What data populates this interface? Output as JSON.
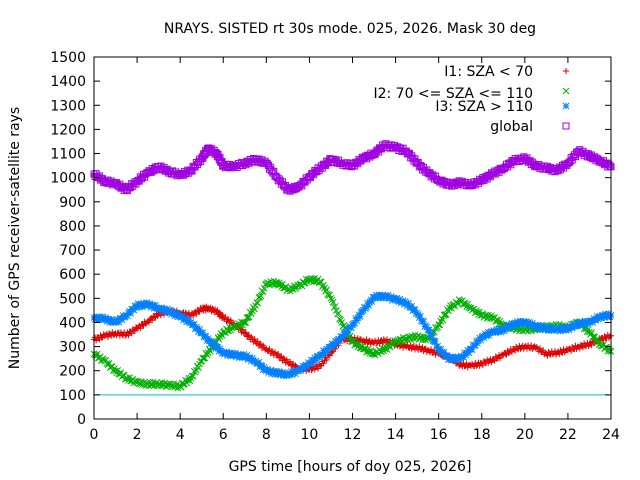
{
  "chart_data": {
    "type": "scatter",
    "title": "NRAYS. SISTED rt 30s mode. 025, 2026. Mask 30 deg",
    "xlabel": "GPS time [hours of doy 025, 2026]",
    "ylabel": "Number of GPS receiver-satellite rays",
    "xlim": [
      0,
      24
    ],
    "ylim": [
      0,
      1500
    ],
    "x_ticks": [
      "0",
      "2",
      "4",
      "6",
      "8",
      "10",
      "12",
      "14",
      "16",
      "18",
      "20",
      "22",
      "24"
    ],
    "y_ticks": [
      "0",
      "100",
      "200",
      "300",
      "400",
      "500",
      "600",
      "700",
      "800",
      "900",
      "1000",
      "1100",
      "1200",
      "1300",
      "1400",
      "1500"
    ],
    "reference_line": {
      "y": 100,
      "color": "#00c0c0"
    },
    "legend_position": "top-right",
    "series": [
      {
        "name": "I1: SZA < 70",
        "marker": "plus",
        "color": "#e00000",
        "points": [
          [
            0,
            330
          ],
          [
            0.5,
            345
          ],
          [
            1,
            355
          ],
          [
            1.5,
            350
          ],
          [
            2,
            375
          ],
          [
            2.5,
            405
          ],
          [
            3,
            435
          ],
          [
            3.5,
            445
          ],
          [
            4,
            440
          ],
          [
            4.5,
            430
          ],
          [
            5,
            455
          ],
          [
            5.3,
            460
          ],
          [
            5.7,
            445
          ],
          [
            6,
            420
          ],
          [
            6.5,
            395
          ],
          [
            7,
            355
          ],
          [
            7.5,
            320
          ],
          [
            8,
            290
          ],
          [
            8.5,
            265
          ],
          [
            9,
            235
          ],
          [
            9.5,
            210
          ],
          [
            10,
            205
          ],
          [
            10.5,
            220
          ],
          [
            11,
            275
          ],
          [
            11.5,
            330
          ],
          [
            12,
            330
          ],
          [
            12.5,
            325
          ],
          [
            13,
            315
          ],
          [
            13.5,
            325
          ],
          [
            14,
            310
          ],
          [
            14.5,
            300
          ],
          [
            15,
            295
          ],
          [
            15.5,
            285
          ],
          [
            16,
            270
          ],
          [
            16.5,
            255
          ],
          [
            17,
            225
          ],
          [
            17.5,
            220
          ],
          [
            18,
            230
          ],
          [
            18.5,
            245
          ],
          [
            19,
            265
          ],
          [
            19.5,
            290
          ],
          [
            20,
            300
          ],
          [
            20.5,
            295
          ],
          [
            21,
            270
          ],
          [
            21.5,
            275
          ],
          [
            22,
            285
          ],
          [
            22.5,
            300
          ],
          [
            23,
            310
          ],
          [
            23.5,
            330
          ],
          [
            24,
            345
          ]
        ]
      },
      {
        "name": "I2: 70 <= SZA <= 110",
        "marker": "cross",
        "color": "#00b000",
        "points": [
          [
            0,
            270
          ],
          [
            0.5,
            240
          ],
          [
            1,
            200
          ],
          [
            1.5,
            170
          ],
          [
            2,
            150
          ],
          [
            2.5,
            145
          ],
          [
            3,
            145
          ],
          [
            3.5,
            140
          ],
          [
            4,
            135
          ],
          [
            4.5,
            170
          ],
          [
            5,
            240
          ],
          [
            5.5,
            300
          ],
          [
            6,
            360
          ],
          [
            6.5,
            380
          ],
          [
            7,
            400
          ],
          [
            7.5,
            470
          ],
          [
            8,
            560
          ],
          [
            8.5,
            565
          ],
          [
            9,
            535
          ],
          [
            9.5,
            550
          ],
          [
            10,
            580
          ],
          [
            10.5,
            570
          ],
          [
            11,
            500
          ],
          [
            11.5,
            400
          ],
          [
            12,
            320
          ],
          [
            12.5,
            290
          ],
          [
            13,
            270
          ],
          [
            13.5,
            290
          ],
          [
            14,
            320
          ],
          [
            14.5,
            335
          ],
          [
            15,
            340
          ],
          [
            15.5,
            330
          ],
          [
            16,
            390
          ],
          [
            16.5,
            460
          ],
          [
            17,
            490
          ],
          [
            17.5,
            460
          ],
          [
            18,
            430
          ],
          [
            18.5,
            420
          ],
          [
            19,
            390
          ],
          [
            19.5,
            375
          ],
          [
            20,
            370
          ],
          [
            20.5,
            375
          ],
          [
            21,
            380
          ],
          [
            21.5,
            385
          ],
          [
            22,
            380
          ],
          [
            22.5,
            400
          ],
          [
            23,
            360
          ],
          [
            23.5,
            310
          ],
          [
            24,
            280
          ]
        ]
      },
      {
        "name": "I3: SZA > 110",
        "marker": "star",
        "color": "#0080ff",
        "points": [
          [
            0,
            420
          ],
          [
            0.5,
            415
          ],
          [
            1,
            400
          ],
          [
            1.5,
            430
          ],
          [
            2,
            470
          ],
          [
            2.5,
            475
          ],
          [
            3,
            460
          ],
          [
            3.5,
            445
          ],
          [
            4,
            425
          ],
          [
            4.5,
            400
          ],
          [
            5,
            355
          ],
          [
            5.5,
            310
          ],
          [
            6,
            275
          ],
          [
            6.5,
            265
          ],
          [
            7,
            260
          ],
          [
            7.5,
            240
          ],
          [
            8,
            200
          ],
          [
            8.5,
            190
          ],
          [
            9,
            185
          ],
          [
            9.5,
            200
          ],
          [
            10,
            230
          ],
          [
            10.5,
            265
          ],
          [
            11,
            300
          ],
          [
            11.5,
            340
          ],
          [
            12,
            390
          ],
          [
            12.5,
            450
          ],
          [
            13,
            505
          ],
          [
            13.5,
            510
          ],
          [
            14,
            495
          ],
          [
            14.5,
            480
          ],
          [
            15,
            440
          ],
          [
            15.5,
            370
          ],
          [
            16,
            290
          ],
          [
            16.5,
            250
          ],
          [
            17,
            250
          ],
          [
            17.5,
            290
          ],
          [
            18,
            340
          ],
          [
            18.5,
            360
          ],
          [
            19,
            370
          ],
          [
            19.5,
            395
          ],
          [
            20,
            400
          ],
          [
            20.5,
            385
          ],
          [
            21,
            375
          ],
          [
            21.5,
            370
          ],
          [
            22,
            375
          ],
          [
            22.5,
            395
          ],
          [
            23,
            400
          ],
          [
            23.5,
            425
          ],
          [
            24,
            430
          ]
        ]
      },
      {
        "name": "global",
        "marker": "square",
        "color": "#a000e0",
        "points": [
          [
            0,
            1015
          ],
          [
            0.5,
            985
          ],
          [
            1,
            975
          ],
          [
            1.5,
            950
          ],
          [
            2,
            985
          ],
          [
            2.5,
            1020
          ],
          [
            3,
            1045
          ],
          [
            3.5,
            1025
          ],
          [
            4,
            1010
          ],
          [
            4.5,
            1030
          ],
          [
            5,
            1080
          ],
          [
            5.3,
            1120
          ],
          [
            5.7,
            1100
          ],
          [
            6,
            1050
          ],
          [
            6.5,
            1045
          ],
          [
            7,
            1060
          ],
          [
            7.5,
            1075
          ],
          [
            8,
            1060
          ],
          [
            8.5,
            1000
          ],
          [
            9,
            950
          ],
          [
            9.5,
            960
          ],
          [
            10,
            1005
          ],
          [
            10.5,
            1040
          ],
          [
            11,
            1075
          ],
          [
            11.5,
            1060
          ],
          [
            12,
            1050
          ],
          [
            12.5,
            1080
          ],
          [
            13,
            1100
          ],
          [
            13.5,
            1135
          ],
          [
            14,
            1125
          ],
          [
            14.5,
            1110
          ],
          [
            15,
            1060
          ],
          [
            15.5,
            1020
          ],
          [
            16,
            990
          ],
          [
            16.5,
            970
          ],
          [
            17,
            980
          ],
          [
            17.5,
            970
          ],
          [
            18,
            990
          ],
          [
            18.5,
            1015
          ],
          [
            19,
            1040
          ],
          [
            19.5,
            1070
          ],
          [
            20,
            1080
          ],
          [
            20.5,
            1050
          ],
          [
            21,
            1040
          ],
          [
            21.5,
            1030
          ],
          [
            22,
            1060
          ],
          [
            22.5,
            1110
          ],
          [
            23,
            1090
          ],
          [
            23.5,
            1070
          ],
          [
            24,
            1045
          ]
        ]
      }
    ]
  }
}
